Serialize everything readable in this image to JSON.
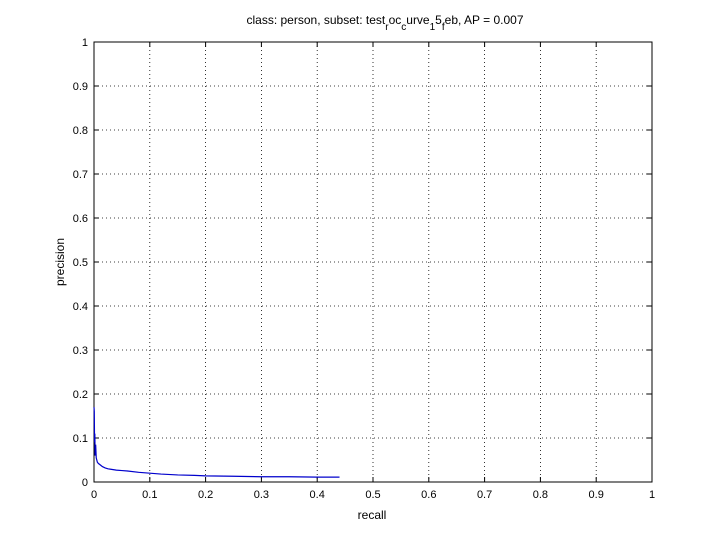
{
  "chart_data": {
    "type": "line",
    "title_parts": [
      {
        "text": "class: person, subset: test",
        "sub": false
      },
      {
        "text": "r",
        "sub": true
      },
      {
        "text": "oc",
        "sub": false
      },
      {
        "text": "c",
        "sub": true
      },
      {
        "text": "urve",
        "sub": false
      },
      {
        "text": "1",
        "sub": true
      },
      {
        "text": "5",
        "sub": false
      },
      {
        "text": "f",
        "sub": true
      },
      {
        "text": "eb, AP = 0.007",
        "sub": false
      }
    ],
    "xlabel": "recall",
    "ylabel": "precision",
    "xlim": [
      0,
      1
    ],
    "ylim": [
      0,
      1
    ],
    "x_ticks": [
      "0",
      "0.1",
      "0.2",
      "0.3",
      "0.4",
      "0.5",
      "0.6",
      "0.7",
      "0.8",
      "0.9",
      "1"
    ],
    "y_ticks": [
      "0",
      "0.1",
      "0.2",
      "0.3",
      "0.4",
      "0.5",
      "0.6",
      "0.7",
      "0.8",
      "0.9",
      "1"
    ],
    "grid": true,
    "line_color": "#0000cc",
    "series": [
      {
        "x": [
          0,
          0.0005,
          0.001,
          0.0015,
          0.002,
          0.003,
          0.004,
          0.005,
          0.006,
          0.008,
          0.01,
          0.012,
          0.015,
          0.02,
          0.025,
          0.03,
          0.04,
          0.05,
          0.06,
          0.08,
          0.1,
          0.12,
          0.15,
          0.18,
          0.2,
          0.25,
          0.3,
          0.35,
          0.4,
          0.44
        ],
        "y": [
          0.17,
          0.16,
          0.09,
          0.11,
          0.06,
          0.085,
          0.055,
          0.05,
          0.045,
          0.042,
          0.04,
          0.038,
          0.035,
          0.032,
          0.03,
          0.029,
          0.027,
          0.026,
          0.025,
          0.022,
          0.02,
          0.018,
          0.016,
          0.015,
          0.014,
          0.013,
          0.012,
          0.012,
          0.011,
          0.011
        ]
      }
    ]
  }
}
